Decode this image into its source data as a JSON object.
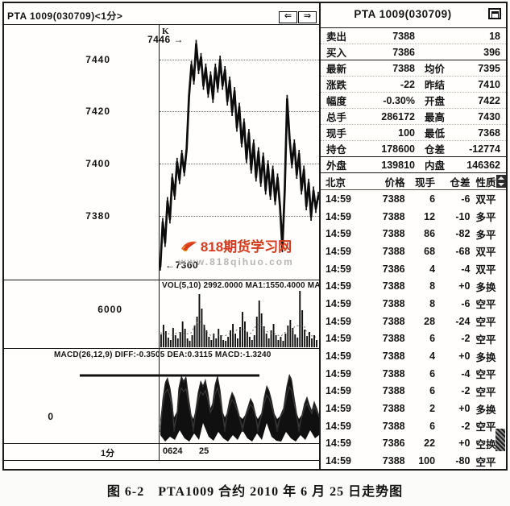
{
  "chart_window": {
    "title": "PTA 1009(030709)<1分>",
    "pane_label": "K",
    "nav_left": "⇐",
    "nav_right": "⇒",
    "price_axis_labels": [
      "7440",
      "7420",
      "7400",
      "7380"
    ],
    "high_annotation": "7446 →",
    "low_annotation": "←7360",
    "watermark_title": "818期货学习网",
    "watermark_url": "www.818qihuo.com",
    "vol_header": "VOL(5,10) 2992.0000 MA1:1550.4000 MA2:1052.6000",
    "vol_axis_label": "6000",
    "macd_header": "MACD(26,12,9) DIFF:-0.3505 DEA:0.3115 MACD:-1.3240",
    "macd_axis_label": "0",
    "x_axis": {
      "period": "1分",
      "date_start": "0624",
      "date_mid": "25"
    }
  },
  "quote_panel": {
    "title": "PTA 1009(030709)",
    "rows": [
      {
        "label": "卖出",
        "value": "7388",
        "label2": "",
        "value2": "18"
      },
      {
        "label": "买入",
        "value": "7386",
        "label2": "",
        "value2": "396"
      },
      {
        "label": "最新",
        "value": "7388",
        "label2": "均价",
        "value2": "7395"
      },
      {
        "label": "涨跌",
        "value": "-22",
        "label2": "昨结",
        "value2": "7410"
      },
      {
        "label": "幅度",
        "value": "-0.30%",
        "label2": "开盘",
        "value2": "7422"
      },
      {
        "label": "总手",
        "value": "286172",
        "label2": "最高",
        "value2": "7430"
      },
      {
        "label": "现手",
        "value": "100",
        "label2": "最低",
        "value2": "7368"
      },
      {
        "label": "持仓",
        "value": "178600",
        "label2": "仓差",
        "value2": "-12774"
      },
      {
        "label": "外盘",
        "value": "139810",
        "label2": "内盘",
        "value2": "146362"
      }
    ],
    "tick_header": [
      "北京",
      "价格",
      "现手",
      "仓差",
      "性质"
    ],
    "ticks": [
      [
        "14:59",
        "7388",
        "6",
        "-6",
        "双平"
      ],
      [
        "14:59",
        "7388",
        "12",
        "-10",
        "多平"
      ],
      [
        "14:59",
        "7388",
        "86",
        "-82",
        "多平"
      ],
      [
        "14:59",
        "7388",
        "68",
        "-68",
        "双平"
      ],
      [
        "14:59",
        "7386",
        "4",
        "-4",
        "双平"
      ],
      [
        "14:59",
        "7388",
        "8",
        "+0",
        "多换"
      ],
      [
        "14:59",
        "7388",
        "8",
        "-6",
        "空平"
      ],
      [
        "14:59",
        "7388",
        "28",
        "-24",
        "空平"
      ],
      [
        "14:59",
        "7388",
        "6",
        "-2",
        "空平"
      ],
      [
        "14:59",
        "7388",
        "4",
        "+0",
        "多换"
      ],
      [
        "14:59",
        "7388",
        "6",
        "-4",
        "空平"
      ],
      [
        "14:59",
        "7388",
        "6",
        "-2",
        "空平"
      ],
      [
        "14:59",
        "7388",
        "2",
        "+0",
        "多换"
      ],
      [
        "14:59",
        "7388",
        "6",
        "-2",
        "空平"
      ],
      [
        "14:59",
        "7386",
        "22",
        "+0",
        "空换"
      ],
      [
        "14:59",
        "7388",
        "100",
        "-80",
        "空平"
      ]
    ]
  },
  "caption": "图 6-2　PTA1009 合约 2010 年 6 月 25 日走势图",
  "colors": {
    "ink": "#141414",
    "watermark_red": "#d43a1d",
    "watermark_orange": "#ef6b1a",
    "watermark_gray": "#b5b5b5"
  },
  "chart_data": {
    "price": {
      "type": "line",
      "title": "PTA1009 1-minute price",
      "y_ticks": [
        7440,
        7420,
        7400,
        7380
      ],
      "high": 7446,
      "session_start_low": 7360,
      "day2_low": 7368,
      "close": 7388,
      "points": [
        7361,
        7378,
        7370,
        7386,
        7379,
        7395,
        7388,
        7401,
        7394,
        7404,
        7397,
        7406,
        7426,
        7438,
        7432,
        7446,
        7436,
        7441,
        7430,
        7437,
        7427,
        7434,
        7425,
        7437,
        7429,
        7440,
        7430,
        7436,
        7424,
        7432,
        7420,
        7428,
        7414,
        7422,
        7408,
        7416,
        7402,
        7412,
        7398,
        7408,
        7395,
        7405,
        7393,
        7403,
        7390,
        7400,
        7388,
        7398,
        7386,
        7395,
        7384,
        7368,
        7390,
        7425,
        7410,
        7400,
        7408,
        7396,
        7404,
        7390,
        7398,
        7384,
        7393,
        7380,
        7390,
        7383,
        7388
      ]
    },
    "volume": {
      "type": "bar",
      "y_tick": 6000,
      "bars": [
        16,
        28,
        20,
        12,
        9,
        24,
        15,
        11,
        19,
        32,
        23,
        11,
        8,
        15,
        27,
        38,
        66,
        48,
        28,
        21,
        13,
        9,
        17,
        11,
        23,
        15,
        9,
        8,
        13,
        21,
        29,
        17,
        11,
        25,
        44,
        32,
        19,
        13,
        9,
        15,
        38,
        58,
        42,
        26,
        17,
        11,
        21,
        29,
        15,
        9,
        13,
        8,
        17,
        27,
        34,
        24,
        16,
        12,
        70,
        46,
        22,
        14,
        19,
        11,
        15,
        9
      ]
    },
    "macd": {
      "type": "area",
      "zero_line_y": 520,
      "trendline": {
        "x1": 97,
        "x2": 320,
        "y": 464
      },
      "upper": [
        [
          197,
          2
        ],
        [
          200,
          26
        ],
        [
          203,
          48
        ],
        [
          206,
          54
        ],
        [
          209,
          42
        ],
        [
          212,
          20
        ],
        [
          214,
          4
        ],
        [
          218,
          12
        ],
        [
          220,
          42
        ],
        [
          223,
          56
        ],
        [
          226,
          50
        ],
        [
          229,
          55
        ],
        [
          232,
          30
        ],
        [
          235,
          8
        ],
        [
          238,
          2
        ],
        [
          241,
          14
        ],
        [
          244,
          36
        ],
        [
          247,
          50
        ],
        [
          250,
          44
        ],
        [
          253,
          52
        ],
        [
          256,
          36
        ],
        [
          259,
          14
        ],
        [
          262,
          22
        ],
        [
          265,
          46
        ],
        [
          268,
          57
        ],
        [
          271,
          40
        ],
        [
          274,
          12
        ],
        [
          277,
          4
        ],
        [
          280,
          10
        ],
        [
          283,
          26
        ],
        [
          286,
          36
        ],
        [
          289,
          30
        ],
        [
          292,
          18
        ],
        [
          295,
          6
        ],
        [
          299,
          2
        ],
        [
          303,
          8
        ],
        [
          306,
          18
        ],
        [
          309,
          28
        ],
        [
          312,
          22
        ],
        [
          315,
          8
        ],
        [
          318,
          2
        ],
        [
          323,
          10
        ],
        [
          326,
          30
        ],
        [
          329,
          44
        ],
        [
          332,
          38
        ],
        [
          335,
          26
        ],
        [
          338,
          10
        ],
        [
          342,
          2
        ],
        [
          346,
          6
        ],
        [
          350,
          16
        ],
        [
          354,
          44
        ],
        [
          357,
          58
        ],
        [
          360,
          52
        ],
        [
          363,
          30
        ],
        [
          366,
          10
        ],
        [
          369,
          2
        ],
        [
          373,
          8
        ],
        [
          376,
          22
        ],
        [
          379,
          30
        ],
        [
          382,
          20
        ],
        [
          385,
          12
        ],
        [
          388,
          24
        ],
        [
          391,
          16
        ],
        [
          394,
          6
        ]
      ],
      "lower": [
        [
          197,
          18
        ],
        [
          203,
          26
        ],
        [
          209,
          20
        ],
        [
          215,
          24
        ],
        [
          221,
          12
        ],
        [
          227,
          22
        ],
        [
          233,
          26
        ],
        [
          239,
          16
        ],
        [
          245,
          24
        ],
        [
          250,
          3
        ],
        [
          257,
          20
        ],
        [
          263,
          25
        ],
        [
          269,
          14
        ],
        [
          275,
          22
        ],
        [
          281,
          26
        ],
        [
          287,
          18
        ],
        [
          293,
          24
        ],
        [
          299,
          12
        ],
        [
          305,
          22
        ],
        [
          311,
          26
        ],
        [
          317,
          16
        ],
        [
          323,
          24
        ],
        [
          329,
          3
        ],
        [
          335,
          20
        ],
        [
          341,
          25
        ],
        [
          347,
          26
        ],
        [
          353,
          14
        ],
        [
          359,
          22
        ],
        [
          365,
          26
        ],
        [
          371,
          18
        ],
        [
          377,
          24
        ],
        [
          383,
          12
        ],
        [
          389,
          22
        ],
        [
          394,
          18
        ]
      ]
    }
  }
}
